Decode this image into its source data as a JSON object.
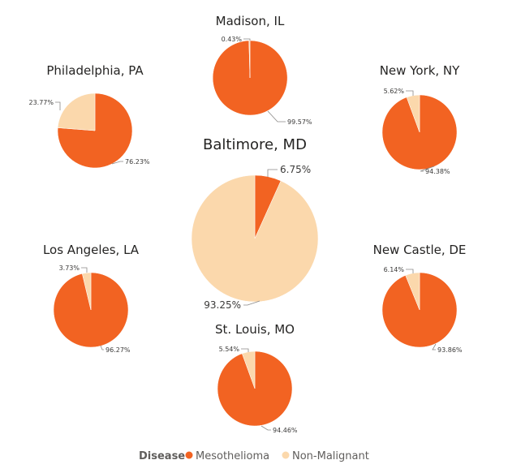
{
  "colors": {
    "Mesothelioma": "#f26322",
    "Non-Malignant": "#fbd8ac"
  },
  "chart_data": [
    {
      "type": "pie",
      "title": "Madison, IL",
      "categories": [
        "Mesothelioma",
        "Non-Malignant"
      ],
      "values": [
        99.57,
        0.43
      ],
      "labels": [
        "99.57%",
        "0.43%"
      ]
    },
    {
      "type": "pie",
      "title": "Philadelphia, PA",
      "categories": [
        "Mesothelioma",
        "Non-Malignant"
      ],
      "values": [
        76.23,
        23.77
      ],
      "labels": [
        "76.23%",
        "23.77%"
      ]
    },
    {
      "type": "pie",
      "title": "New York, NY",
      "categories": [
        "Mesothelioma",
        "Non-Malignant"
      ],
      "values": [
        94.38,
        5.62
      ],
      "labels": [
        "94.38%",
        "5.62%"
      ]
    },
    {
      "type": "pie",
      "title": "Baltimore, MD",
      "categories": [
        "Mesothelioma",
        "Non-Malignant"
      ],
      "values": [
        6.75,
        93.25
      ],
      "labels": [
        "6.75%",
        "93.25%"
      ]
    },
    {
      "type": "pie",
      "title": "Los Angeles, LA",
      "categories": [
        "Mesothelioma",
        "Non-Malignant"
      ],
      "values": [
        96.27,
        3.73
      ],
      "labels": [
        "96.27%",
        "3.73%"
      ]
    },
    {
      "type": "pie",
      "title": "New Castle, DE",
      "categories": [
        "Mesothelioma",
        "Non-Malignant"
      ],
      "values": [
        93.86,
        6.14
      ],
      "labels": [
        "93.86%",
        "6.14%"
      ]
    },
    {
      "type": "pie",
      "title": "St. Louis, MO",
      "categories": [
        "Mesothelioma",
        "Non-Malignant"
      ],
      "values": [
        94.46,
        5.54
      ],
      "labels": [
        "94.46%",
        "5.54%"
      ]
    }
  ],
  "legend": {
    "title": "Disease",
    "items": [
      "Mesothelioma",
      "Non-Malignant"
    ]
  }
}
